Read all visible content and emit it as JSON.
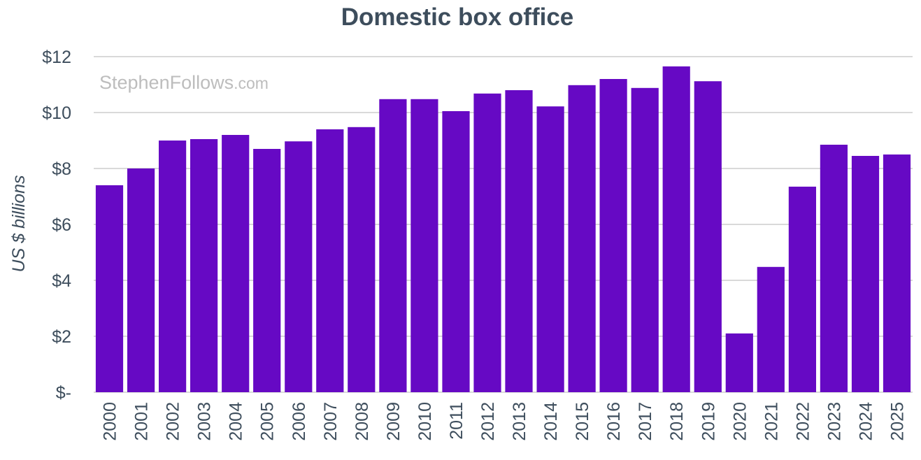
{
  "chart_data": {
    "type": "bar",
    "title": "Domestic box office",
    "xlabel": "",
    "ylabel": "US $ billions",
    "ylim": [
      0,
      12
    ],
    "y_ticks": [
      0,
      2,
      4,
      6,
      8,
      10,
      12
    ],
    "y_tick_labels": [
      "$-",
      "$2",
      "$4",
      "$6",
      "$8",
      "$10",
      "$12"
    ],
    "grid": true,
    "legend": "none",
    "bar_color": "#6609c4",
    "categories": [
      "2000",
      "2001",
      "2002",
      "2003",
      "2004",
      "2005",
      "2006",
      "2007",
      "2008",
      "2009",
      "2010",
      "2011",
      "2012",
      "2013",
      "2014",
      "2015",
      "2016",
      "2017",
      "2018",
      "2019",
      "2020",
      "2021",
      "2022",
      "2023",
      "2024",
      "2025"
    ],
    "values": [
      7.4,
      8.0,
      9.0,
      9.05,
      9.2,
      8.7,
      8.97,
      9.4,
      9.48,
      10.48,
      10.48,
      10.05,
      10.68,
      10.8,
      10.22,
      10.98,
      11.2,
      10.88,
      11.65,
      11.12,
      2.1,
      4.48,
      7.35,
      8.85,
      8.45,
      8.5
    ]
  },
  "watermark": {
    "main": "StephenFollows",
    "suffix": ".com"
  }
}
